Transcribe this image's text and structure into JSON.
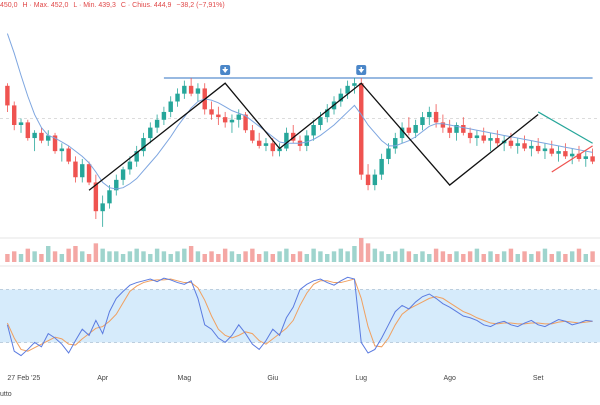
{
  "header": {
    "open": "450,0",
    "high": "H · Max. 452,0",
    "low": "L · Min. 439,3",
    "close": "C · Chius. 444,9",
    "change": "−38,2 (−7,91%)"
  },
  "bottom_left_text": "utto",
  "colors": {
    "up": "#26a69a",
    "down": "#ef5350",
    "ma": "#7ea6e0",
    "resistance": "#5b8fcf",
    "pattern": "#111111",
    "triangle_upper": "#26a69a",
    "triangle_lower": "#ef5350",
    "stoch_k": "#5b7be0",
    "stoch_d": "#f0a060",
    "stoch_band": "#d6ebfb",
    "volume_up": "#9fd4cd",
    "volume_down": "#f4a7a4",
    "marker": "#4a86c8"
  },
  "chart_data": {
    "type": "candlestick",
    "x": [
      "feb-27",
      "mar-03",
      "mar-05",
      "mar-07",
      "mar-10",
      "mar-12",
      "mar-14",
      "mar-17",
      "mar-19",
      "mar-21",
      "mar-24",
      "mar-26",
      "mar-28",
      "mar-31",
      "apr-02",
      "apr-04",
      "apr-07",
      "apr-09",
      "apr-11",
      "apr-14",
      "apr-16",
      "apr-18",
      "apr-22",
      "apr-24",
      "apr-28",
      "apr-30",
      "may-02",
      "may-05",
      "may-07",
      "may-09",
      "may-12",
      "may-14",
      "may-16",
      "may-19",
      "may-21",
      "may-23",
      "may-26",
      "may-28",
      "may-30",
      "jun-02",
      "jun-04",
      "jun-06",
      "jun-09",
      "jun-11",
      "jun-13",
      "jun-16",
      "jun-18",
      "jun-20",
      "jun-23",
      "jun-25",
      "jun-27",
      "jun-30",
      "jul-02",
      "jul-04",
      "jul-07",
      "jul-09",
      "jul-11",
      "jul-14",
      "jul-16",
      "jul-18",
      "jul-21",
      "jul-23",
      "jul-25",
      "jul-28",
      "jul-30",
      "aug-01",
      "aug-04",
      "aug-06",
      "aug-08",
      "aug-11",
      "aug-13",
      "aug-15",
      "aug-18",
      "aug-20",
      "aug-22",
      "aug-25",
      "aug-27",
      "aug-29",
      "sep-01",
      "sep-03",
      "sep-05",
      "sep-08",
      "sep-10",
      "sep-12",
      "sep-15",
      "sep-17",
      "sep-19"
    ],
    "x_axis_labels": [
      {
        "label": "27 Feb '25",
        "at": "feb-27"
      },
      {
        "label": "Apr",
        "at": "apr-02"
      },
      {
        "label": "Mag",
        "at": "may-02"
      },
      {
        "label": "Giu",
        "at": "jun-02"
      },
      {
        "label": "Lug",
        "at": "jul-02"
      },
      {
        "label": "Ago",
        "at": "aug-01"
      },
      {
        "label": "Set",
        "at": "sep-01"
      }
    ],
    "ohlc": [
      [
        520,
        522,
        500,
        505
      ],
      [
        505,
        508,
        486,
        490
      ],
      [
        490,
        495,
        484,
        492
      ],
      [
        492,
        494,
        478,
        480
      ],
      [
        480,
        486,
        470,
        484
      ],
      [
        484,
        488,
        476,
        478
      ],
      [
        478,
        486,
        474,
        482
      ],
      [
        482,
        484,
        468,
        470
      ],
      [
        470,
        476,
        462,
        472
      ],
      [
        472,
        474,
        460,
        462
      ],
      [
        462,
        466,
        446,
        450
      ],
      [
        450,
        464,
        446,
        460
      ],
      [
        460,
        462,
        444,
        446
      ],
      [
        446,
        452,
        418,
        424
      ],
      [
        424,
        436,
        412,
        430
      ],
      [
        430,
        444,
        426,
        440
      ],
      [
        440,
        452,
        436,
        448
      ],
      [
        448,
        458,
        444,
        456
      ],
      [
        456,
        466,
        452,
        462
      ],
      [
        462,
        474,
        458,
        470
      ],
      [
        470,
        484,
        466,
        480
      ],
      [
        480,
        492,
        476,
        488
      ],
      [
        488,
        498,
        484,
        494
      ],
      [
        494,
        504,
        490,
        500
      ],
      [
        500,
        512,
        496,
        508
      ],
      [
        508,
        518,
        504,
        514
      ],
      [
        514,
        524,
        510,
        520
      ],
      [
        520,
        526,
        512,
        514
      ],
      [
        514,
        522,
        508,
        518
      ],
      [
        518,
        522,
        498,
        502
      ],
      [
        502,
        508,
        494,
        498
      ],
      [
        498,
        504,
        490,
        496
      ],
      [
        496,
        500,
        488,
        492
      ],
      [
        492,
        498,
        484,
        494
      ],
      [
        494,
        502,
        488,
        498
      ],
      [
        498,
        500,
        484,
        486
      ],
      [
        486,
        490,
        476,
        478
      ],
      [
        478,
        484,
        472,
        474
      ],
      [
        474,
        480,
        470,
        476
      ],
      [
        476,
        480,
        466,
        470
      ],
      [
        470,
        476,
        466,
        472
      ],
      [
        472,
        488,
        470,
        484
      ],
      [
        484,
        490,
        476,
        478
      ],
      [
        478,
        482,
        470,
        474
      ],
      [
        474,
        486,
        470,
        482
      ],
      [
        482,
        494,
        478,
        490
      ],
      [
        490,
        500,
        486,
        496
      ],
      [
        496,
        506,
        492,
        502
      ],
      [
        502,
        512,
        498,
        508
      ],
      [
        508,
        518,
        504,
        514
      ],
      [
        514,
        524,
        510,
        520
      ],
      [
        520,
        526,
        514,
        522
      ],
      [
        522,
        526,
        448,
        452
      ],
      [
        452,
        460,
        440,
        444
      ],
      [
        444,
        456,
        440,
        452
      ],
      [
        452,
        468,
        448,
        464
      ],
      [
        464,
        476,
        460,
        472
      ],
      [
        472,
        484,
        468,
        480
      ],
      [
        480,
        492,
        476,
        488
      ],
      [
        488,
        496,
        482,
        484
      ],
      [
        484,
        494,
        480,
        490
      ],
      [
        490,
        500,
        486,
        496
      ],
      [
        496,
        504,
        490,
        500
      ],
      [
        500,
        506,
        488,
        492
      ],
      [
        492,
        498,
        484,
        488
      ],
      [
        488,
        494,
        480,
        484
      ],
      [
        484,
        492,
        478,
        490
      ],
      [
        490,
        496,
        482,
        484
      ],
      [
        484,
        488,
        476,
        480
      ],
      [
        480,
        486,
        474,
        482
      ],
      [
        482,
        488,
        476,
        478
      ],
      [
        478,
        484,
        470,
        480
      ],
      [
        480,
        486,
        474,
        476
      ],
      [
        476,
        482,
        470,
        478
      ],
      [
        478,
        484,
        472,
        474
      ],
      [
        474,
        480,
        468,
        476
      ],
      [
        476,
        482,
        470,
        472
      ],
      [
        472,
        478,
        466,
        474
      ],
      [
        474,
        480,
        468,
        470
      ],
      [
        470,
        476,
        464,
        472
      ],
      [
        472,
        478,
        466,
        468
      ],
      [
        468,
        474,
        462,
        470
      ],
      [
        470,
        476,
        464,
        466
      ],
      [
        466,
        472,
        460,
        468
      ],
      [
        468,
        474,
        462,
        464
      ],
      [
        464,
        470,
        458,
        466
      ],
      [
        466,
        472,
        460,
        462
      ]
    ],
    "moving_average": [
      560,
      545,
      528,
      512,
      498,
      488,
      482,
      480,
      477,
      474,
      470,
      466,
      461,
      454,
      446,
      442,
      441,
      442,
      445,
      449,
      455,
      461,
      467,
      474,
      481,
      489,
      496,
      503,
      508,
      510,
      509,
      507,
      504,
      501,
      499,
      497,
      493,
      489,
      485,
      481,
      477,
      476,
      476,
      476,
      477,
      479,
      482,
      486,
      490,
      495,
      500,
      505,
      498,
      490,
      484,
      478,
      474,
      474,
      476,
      478,
      481,
      485,
      489,
      491,
      491,
      490,
      489,
      488,
      487,
      486,
      485,
      484,
      483,
      482,
      481,
      480,
      479,
      478,
      477,
      476,
      475,
      474,
      473,
      472,
      471,
      470,
      469
    ],
    "volume": [
      3,
      4,
      3,
      5,
      4,
      3,
      6,
      4,
      3,
      5,
      6,
      4,
      3,
      7,
      5,
      4,
      4,
      3,
      4,
      5,
      4,
      3,
      5,
      4,
      3,
      4,
      5,
      6,
      4,
      3,
      4,
      3,
      5,
      4,
      3,
      4,
      5,
      3,
      4,
      3,
      4,
      5,
      3,
      4,
      3,
      5,
      4,
      3,
      4,
      5,
      4,
      6,
      9,
      7,
      5,
      4,
      3,
      4,
      5,
      4,
      3,
      4,
      3,
      5,
      4,
      3,
      4,
      3,
      4,
      5,
      3,
      4,
      3,
      4,
      5,
      3,
      4,
      3,
      4,
      5,
      3,
      4,
      3,
      4,
      5,
      3,
      4
    ],
    "stoch_k": [
      40,
      10,
      5,
      12,
      20,
      15,
      30,
      25,
      18,
      8,
      22,
      35,
      28,
      45,
      30,
      55,
      70,
      78,
      85,
      88,
      90,
      92,
      89,
      93,
      91,
      88,
      86,
      90,
      70,
      40,
      35,
      25,
      20,
      28,
      40,
      30,
      18,
      12,
      22,
      35,
      28,
      48,
      60,
      80,
      86,
      90,
      92,
      88,
      85,
      90,
      94,
      92,
      20,
      8,
      12,
      25,
      40,
      55,
      62,
      58,
      66,
      72,
      75,
      70,
      64,
      60,
      55,
      50,
      48,
      45,
      40,
      38,
      42,
      44,
      40,
      38,
      42,
      45,
      40,
      38,
      42,
      46,
      44,
      40,
      42,
      45,
      44
    ],
    "stoch_d": [
      42,
      25,
      12,
      10,
      14,
      18,
      22,
      26,
      24,
      18,
      17,
      24,
      30,
      36,
      38,
      44,
      52,
      65,
      78,
      84,
      88,
      90,
      91,
      91,
      92,
      90,
      88,
      88,
      82,
      68,
      50,
      35,
      28,
      25,
      28,
      32,
      30,
      22,
      18,
      24,
      30,
      36,
      45,
      62,
      76,
      86,
      90,
      90,
      88,
      88,
      90,
      92,
      70,
      38,
      16,
      15,
      25,
      40,
      52,
      58,
      62,
      66,
      70,
      72,
      70,
      65,
      60,
      55,
      52,
      48,
      45,
      42,
      41,
      42,
      42,
      41,
      41,
      42,
      42,
      41,
      41,
      43,
      44,
      43,
      42,
      43,
      44
    ],
    "resistance": {
      "value": 526,
      "from": "apr-24",
      "to": "sep-19"
    },
    "double_top_markers": [
      "may-16",
      "jul-02"
    ],
    "pattern_line": [
      [
        "mar-28",
        440
      ],
      [
        "may-16",
        522
      ],
      [
        "jun-04",
        472
      ],
      [
        "jul-02",
        522
      ],
      [
        "aug-01",
        444
      ],
      [
        "sep-01",
        498
      ]
    ],
    "triangle": {
      "upper": [
        [
          "sep-01",
          500
        ],
        [
          "sep-19",
          476
        ]
      ],
      "lower": [
        [
          "sep-05",
          454
        ],
        [
          "sep-19",
          474
        ]
      ]
    },
    "stoch_band": [
      20,
      80
    ],
    "price_range": [
      405,
      575
    ],
    "stoch_range": [
      0,
      100
    ]
  }
}
